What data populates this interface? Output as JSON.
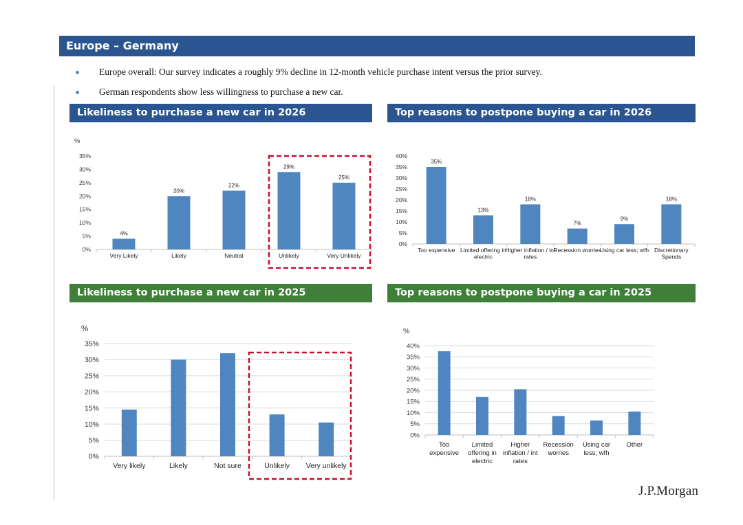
{
  "page": {
    "title": "Europe – Germany",
    "bullets": [
      "Europe overall: Our survey indicates a roughly 9% decline in 12-month vehicle purchase intent versus the prior survey.",
      "German respondents show less willingness to purchase a new car."
    ],
    "logo": "J.P.Morgan",
    "colors": {
      "header_blue": "#2a5590",
      "header_green": "#3f7f3a",
      "bar": "#4f86c0",
      "highlight": "#c8102e"
    }
  },
  "sections": {
    "tl": "Likeliness to purchase a new car in 2026",
    "tr": "Top reasons to postpone buying a car in 2026",
    "bl": "Likeliness to purchase a new car in 2025",
    "br": "Top reasons to postpone buying a car in 2025"
  },
  "chart_data": [
    {
      "id": "tl",
      "type": "bar",
      "title": "Likeliness to purchase a new car in 2026",
      "ylabel": "%",
      "ylim": [
        0,
        35
      ],
      "yticks": [
        0,
        5,
        10,
        15,
        20,
        25,
        30,
        35
      ],
      "categories": [
        "Very Likely",
        "Likely",
        "Neutral",
        "Unlikely",
        "Very Unlikely"
      ],
      "values": [
        4,
        20,
        22,
        29,
        25
      ],
      "data_labels": [
        "4%",
        "20%",
        "22%",
        "29%",
        "25%"
      ],
      "grid": false,
      "highlight": [
        "Unlikely",
        "Very Unlikely"
      ]
    },
    {
      "id": "tr",
      "type": "bar",
      "title": "Top reasons to postpone buying a car in 2026",
      "ylabel": "",
      "ylim": [
        0,
        40
      ],
      "yticks": [
        0,
        5,
        10,
        15,
        20,
        25,
        30,
        35,
        40
      ],
      "categories": [
        [
          "Too expensive"
        ],
        [
          "Limited offering in",
          "electric"
        ],
        [
          "Higher inflation / int",
          "rates"
        ],
        [
          "Recession worries"
        ],
        [
          "Using car less; wfh"
        ],
        [
          "Discretionary",
          "Spends"
        ]
      ],
      "values": [
        35,
        13,
        18,
        7,
        9,
        18
      ],
      "data_labels": [
        "35%",
        "13%",
        "18%",
        "7%",
        "9%",
        "18%"
      ],
      "grid": false
    },
    {
      "id": "bl",
      "type": "bar",
      "title": "Likeliness to purchase a new car in 2025",
      "ylabel": "%",
      "ylim": [
        0,
        35
      ],
      "yticks": [
        0,
        5,
        10,
        15,
        20,
        25,
        30,
        35
      ],
      "categories": [
        "Very likely",
        "Likely",
        "Not sure",
        "Unlikely",
        "Very unlikely"
      ],
      "values": [
        14.5,
        30,
        32,
        13,
        10.5
      ],
      "grid": true,
      "highlight": [
        "Unlikely",
        "Very unlikely"
      ]
    },
    {
      "id": "br",
      "type": "bar",
      "title": "Top reasons to postpone buying a car in 2025",
      "ylabel": "%",
      "ylim": [
        0,
        40
      ],
      "yticks": [
        0,
        5,
        10,
        15,
        20,
        25,
        30,
        35,
        40
      ],
      "categories": [
        [
          "Too",
          "expensive"
        ],
        [
          "Limited",
          "offering in",
          "electric"
        ],
        [
          "Higher",
          "inflation / int",
          "rates"
        ],
        [
          "Recession",
          "worries"
        ],
        [
          "Using car",
          "less; wfh"
        ],
        [
          "Other"
        ]
      ],
      "values": [
        37.5,
        17,
        20.5,
        8.5,
        6.5,
        10.5
      ],
      "grid": true
    }
  ]
}
